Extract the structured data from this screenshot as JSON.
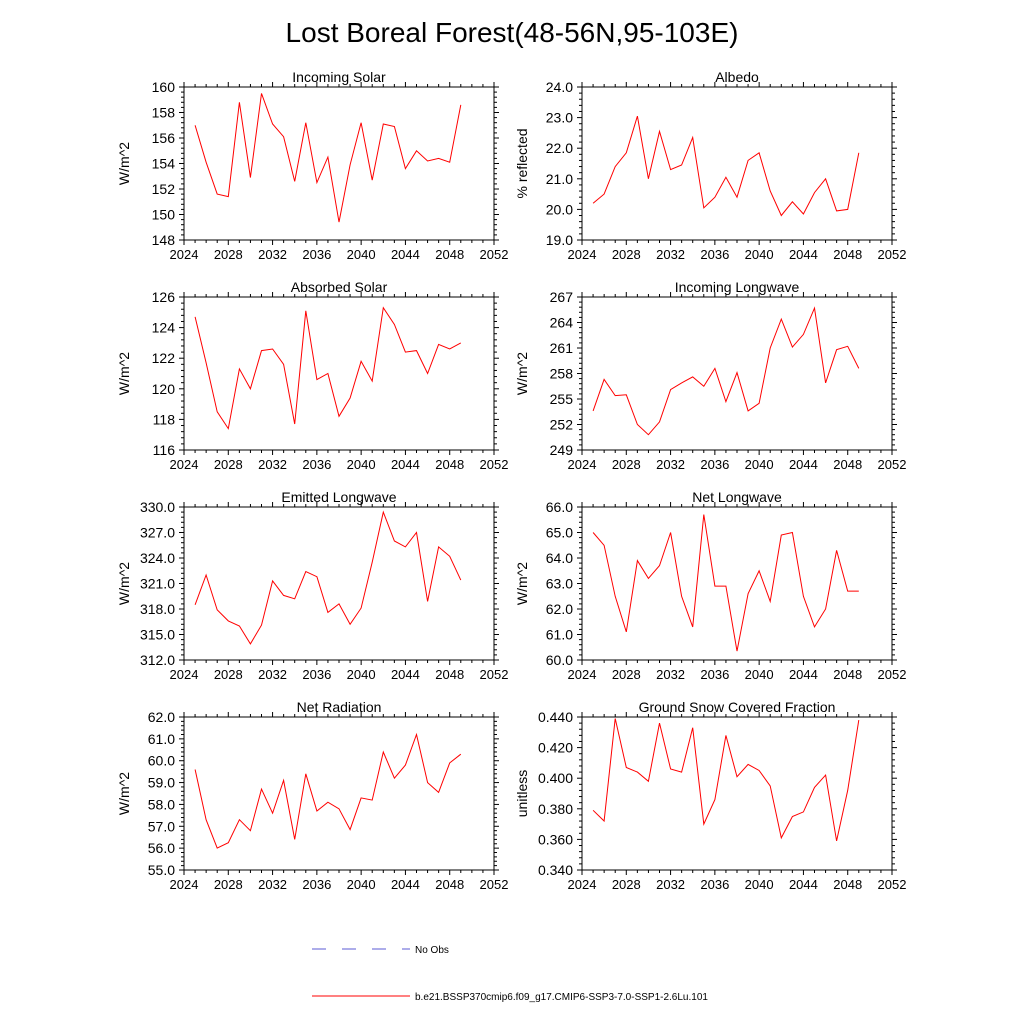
{
  "title": "Lost Boreal Forest(48-56N,95-103E)",
  "legend": {
    "entries": [
      {
        "label": "No Obs",
        "color": "#5b5bd6",
        "style": "dashed"
      },
      {
        "label": "b.e21.BSSP370cmip6.f09_g17.CMIP6-SSP3-7.0-SSP1-2.6Lu.101",
        "color": "#ff0000",
        "style": "solid"
      }
    ]
  },
  "chart_data": [
    {
      "type": "line",
      "title": "Incoming Solar",
      "ylabel": "W/m^2",
      "xlim": [
        2024,
        2052
      ],
      "ylim": [
        148,
        160
      ],
      "x_ticks": [
        2024,
        2028,
        2032,
        2036,
        2040,
        2044,
        2048,
        2052
      ],
      "y_ticks": [
        148,
        150,
        152,
        154,
        156,
        158,
        160
      ],
      "y_tick_labels": [
        "148",
        "150",
        "152",
        "154",
        "156",
        "158",
        "160"
      ],
      "series": [
        {
          "color": "#ff0000",
          "x": [
            2025,
            2026,
            2027,
            2028,
            2029,
            2030,
            2031,
            2032,
            2033,
            2034,
            2035,
            2036,
            2037,
            2038,
            2039,
            2040,
            2041,
            2042,
            2043,
            2044,
            2045,
            2046,
            2047,
            2048,
            2049
          ],
          "values": [
            157.0,
            154.1,
            151.6,
            151.4,
            158.8,
            152.9,
            159.5,
            157.1,
            156.1,
            152.6,
            157.2,
            152.5,
            154.5,
            149.4,
            153.9,
            157.2,
            152.7,
            157.1,
            156.9,
            153.6,
            155.0,
            154.2,
            154.4,
            154.1,
            158.6
          ]
        }
      ]
    },
    {
      "type": "line",
      "title": "Albedo",
      "ylabel": "% reflected",
      "xlim": [
        2024,
        2052
      ],
      "ylim": [
        19.0,
        24.0
      ],
      "x_ticks": [
        2024,
        2028,
        2032,
        2036,
        2040,
        2044,
        2048,
        2052
      ],
      "y_ticks": [
        19,
        20,
        21,
        22,
        23,
        24
      ],
      "y_tick_labels": [
        "19.0",
        "20.0",
        "21.0",
        "22.0",
        "23.0",
        "24.0"
      ],
      "series": [
        {
          "color": "#ff0000",
          "x": [
            2025,
            2026,
            2027,
            2028,
            2029,
            2030,
            2031,
            2032,
            2033,
            2034,
            2035,
            2036,
            2037,
            2038,
            2039,
            2040,
            2041,
            2042,
            2043,
            2044,
            2045,
            2046,
            2047,
            2048,
            2049
          ],
          "values": [
            20.2,
            20.5,
            21.4,
            21.85,
            23.05,
            21.0,
            22.55,
            21.3,
            21.45,
            22.35,
            20.05,
            20.4,
            21.05,
            20.4,
            21.6,
            21.85,
            20.6,
            19.8,
            20.25,
            19.85,
            20.55,
            21.0,
            19.95,
            20.0,
            21.85
          ]
        }
      ]
    },
    {
      "type": "line",
      "title": "Absorbed Solar",
      "ylabel": "W/m^2",
      "xlim": [
        2024,
        2052
      ],
      "ylim": [
        116,
        126
      ],
      "x_ticks": [
        2024,
        2028,
        2032,
        2036,
        2040,
        2044,
        2048,
        2052
      ],
      "y_ticks": [
        116,
        118,
        120,
        122,
        124,
        126
      ],
      "y_tick_labels": [
        "116",
        "118",
        "120",
        "122",
        "124",
        "126"
      ],
      "series": [
        {
          "color": "#ff0000",
          "x": [
            2025,
            2026,
            2027,
            2028,
            2029,
            2030,
            2031,
            2032,
            2033,
            2034,
            2035,
            2036,
            2037,
            2038,
            2039,
            2040,
            2041,
            2042,
            2043,
            2044,
            2045,
            2046,
            2047,
            2048,
            2049
          ],
          "values": [
            124.7,
            121.7,
            118.5,
            117.4,
            121.3,
            120.0,
            122.5,
            122.6,
            121.6,
            117.7,
            125.1,
            120.6,
            121.0,
            118.2,
            119.4,
            121.8,
            120.5,
            125.3,
            124.2,
            122.4,
            122.5,
            121.0,
            122.9,
            122.6,
            123.0
          ]
        }
      ]
    },
    {
      "type": "line",
      "title": "Incoming Longwave",
      "ylabel": "W/m^2",
      "xlim": [
        2024,
        2052
      ],
      "ylim": [
        249,
        267
      ],
      "x_ticks": [
        2024,
        2028,
        2032,
        2036,
        2040,
        2044,
        2048,
        2052
      ],
      "y_ticks": [
        249,
        252,
        255,
        258,
        261,
        264,
        267
      ],
      "y_tick_labels": [
        "249",
        "252",
        "255",
        "258",
        "261",
        "264",
        "267"
      ],
      "series": [
        {
          "color": "#ff0000",
          "x": [
            2025,
            2026,
            2027,
            2028,
            2029,
            2030,
            2031,
            2032,
            2033,
            2034,
            2035,
            2036,
            2037,
            2038,
            2039,
            2040,
            2041,
            2042,
            2043,
            2044,
            2045,
            2046,
            2047,
            2048,
            2049
          ],
          "values": [
            253.6,
            257.3,
            255.4,
            255.5,
            252.0,
            250.8,
            252.3,
            256.1,
            256.9,
            257.6,
            256.5,
            258.6,
            254.7,
            258.1,
            253.6,
            254.5,
            261.0,
            264.4,
            261.1,
            262.6,
            265.7,
            256.9,
            260.8,
            261.2,
            258.6
          ]
        }
      ]
    },
    {
      "type": "line",
      "title": "Emitted Longwave",
      "ylabel": "W/m^2",
      "xlim": [
        2024,
        2052
      ],
      "ylim": [
        312,
        330
      ],
      "x_ticks": [
        2024,
        2028,
        2032,
        2036,
        2040,
        2044,
        2048,
        2052
      ],
      "y_ticks": [
        312,
        315,
        318,
        321,
        324,
        327,
        330
      ],
      "y_tick_labels": [
        "312.0",
        "315.0",
        "318.0",
        "321.0",
        "324.0",
        "327.0",
        "330.0"
      ],
      "series": [
        {
          "color": "#ff0000",
          "x": [
            2025,
            2026,
            2027,
            2028,
            2029,
            2030,
            2031,
            2032,
            2033,
            2034,
            2035,
            2036,
            2037,
            2038,
            2039,
            2040,
            2041,
            2042,
            2043,
            2044,
            2045,
            2046,
            2047,
            2048,
            2049
          ],
          "values": [
            318.5,
            322.0,
            317.9,
            316.6,
            316.0,
            313.9,
            316.1,
            321.3,
            319.6,
            319.2,
            322.4,
            321.8,
            317.6,
            318.6,
            316.2,
            318.1,
            323.5,
            329.4,
            326.0,
            325.3,
            327.0,
            318.9,
            325.3,
            324.2,
            321.4
          ]
        }
      ]
    },
    {
      "type": "line",
      "title": "Net Longwave",
      "ylabel": "W/m^2",
      "xlim": [
        2024,
        2052
      ],
      "ylim": [
        60.0,
        66.0
      ],
      "x_ticks": [
        2024,
        2028,
        2032,
        2036,
        2040,
        2044,
        2048,
        2052
      ],
      "y_ticks": [
        60,
        61,
        62,
        63,
        64,
        65,
        66
      ],
      "y_tick_labels": [
        "60.0",
        "61.0",
        "62.0",
        "63.0",
        "64.0",
        "65.0",
        "66.0"
      ],
      "series": [
        {
          "color": "#ff0000",
          "x": [
            2025,
            2026,
            2027,
            2028,
            2029,
            2030,
            2031,
            2032,
            2033,
            2034,
            2035,
            2036,
            2037,
            2038,
            2039,
            2040,
            2041,
            2042,
            2043,
            2044,
            2045,
            2046,
            2047,
            2048,
            2049
          ],
          "values": [
            65.0,
            64.5,
            62.5,
            61.1,
            63.9,
            63.2,
            63.7,
            65.0,
            62.5,
            61.3,
            65.7,
            62.9,
            62.9,
            60.35,
            62.6,
            63.5,
            62.3,
            64.9,
            65.0,
            62.5,
            61.3,
            62.0,
            64.3,
            62.7,
            62.7
          ]
        }
      ]
    },
    {
      "type": "line",
      "title": "Net Radiation",
      "ylabel": "W/m^2",
      "xlim": [
        2024,
        2052
      ],
      "ylim": [
        55.0,
        62.0
      ],
      "x_ticks": [
        2024,
        2028,
        2032,
        2036,
        2040,
        2044,
        2048,
        2052
      ],
      "y_ticks": [
        55,
        56,
        57,
        58,
        59,
        60,
        61,
        62
      ],
      "y_tick_labels": [
        "55.0",
        "56.0",
        "57.0",
        "58.0",
        "59.0",
        "60.0",
        "61.0",
        "62.0"
      ],
      "series": [
        {
          "color": "#ff0000",
          "x": [
            2025,
            2026,
            2027,
            2028,
            2029,
            2030,
            2031,
            2032,
            2033,
            2034,
            2035,
            2036,
            2037,
            2038,
            2039,
            2040,
            2041,
            2042,
            2043,
            2044,
            2045,
            2046,
            2047,
            2048,
            2049
          ],
          "values": [
            59.6,
            57.3,
            56.0,
            56.25,
            57.3,
            56.8,
            58.7,
            57.6,
            59.1,
            56.4,
            59.4,
            57.7,
            58.1,
            57.8,
            56.85,
            58.3,
            58.2,
            60.4,
            59.2,
            59.8,
            61.2,
            59.0,
            58.55,
            59.9,
            60.3
          ]
        }
      ]
    },
    {
      "type": "line",
      "title": "Ground Snow Covered Fraction",
      "ylabel": "unitless",
      "xlim": [
        2024,
        2052
      ],
      "ylim": [
        0.34,
        0.44
      ],
      "x_ticks": [
        2024,
        2028,
        2032,
        2036,
        2040,
        2044,
        2048,
        2052
      ],
      "y_ticks": [
        0.34,
        0.36,
        0.38,
        0.4,
        0.42,
        0.44
      ],
      "y_tick_labels": [
        "0.340",
        "0.360",
        "0.380",
        "0.400",
        "0.420",
        "0.440"
      ],
      "series": [
        {
          "color": "#ff0000",
          "x": [
            2025,
            2026,
            2027,
            2028,
            2029,
            2030,
            2031,
            2032,
            2033,
            2034,
            2035,
            2036,
            2037,
            2038,
            2039,
            2040,
            2041,
            2042,
            2043,
            2044,
            2045,
            2046,
            2047,
            2048,
            2049
          ],
          "values": [
            0.379,
            0.372,
            0.439,
            0.407,
            0.404,
            0.398,
            0.436,
            0.406,
            0.404,
            0.433,
            0.37,
            0.386,
            0.428,
            0.401,
            0.409,
            0.405,
            0.395,
            0.361,
            0.375,
            0.378,
            0.394,
            0.402,
            0.359,
            0.392,
            0.438
          ]
        }
      ]
    }
  ]
}
